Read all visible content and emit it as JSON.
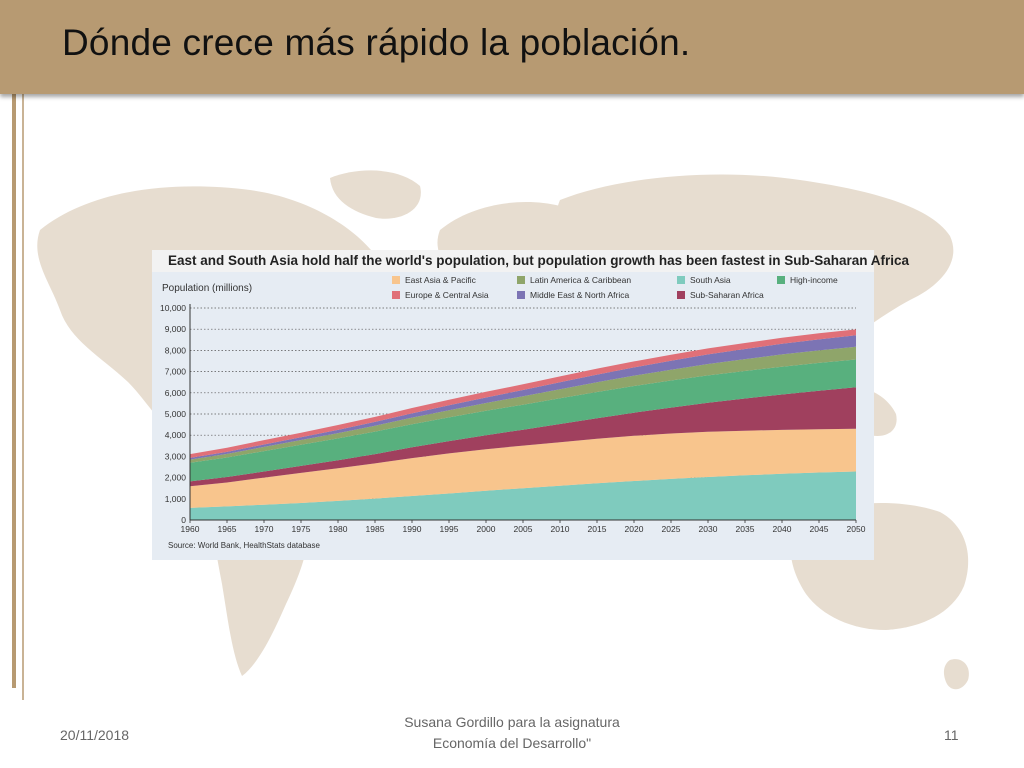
{
  "slide": {
    "title": "Dónde crece más rápido la población.",
    "date": "20/11/2018",
    "footer_line1": "Susana Gordillo para la asignatura",
    "footer_line2": "Economía del Desarrollo\"",
    "page_number": "11"
  },
  "colors": {
    "title_bar": "#b79a72",
    "map": "#e7ddd0"
  },
  "chart_data": {
    "type": "area",
    "stacked": true,
    "title": "East and South Asia hold half the world's population, but population growth has been fastest in Sub-Saharan Africa",
    "ylabel": "Population (millions)",
    "xlabel": "",
    "source": "Source: World Bank, HealthStats database",
    "x": [
      1960,
      1965,
      1970,
      1975,
      1980,
      1985,
      1990,
      1995,
      2000,
      2005,
      2010,
      2015,
      2020,
      2025,
      2030,
      2035,
      2040,
      2045,
      2050
    ],
    "x_tick_labels": [
      "1960",
      "1965",
      "1970",
      "1975",
      "1980",
      "1985",
      "1990",
      "1995",
      "2000",
      "2005",
      "2010",
      "2015",
      "2020",
      "2025",
      "2030",
      "2035",
      "2040",
      "2045",
      "2050"
    ],
    "ylim": [
      0,
      10000
    ],
    "y_ticks": [
      0,
      1000,
      2000,
      3000,
      4000,
      5000,
      6000,
      7000,
      8000,
      9000,
      10000
    ],
    "y_tick_labels": [
      "0",
      "1,000",
      "2,000",
      "3,000",
      "4,000",
      "5,000",
      "6,000",
      "7,000",
      "8,000",
      "9,000",
      "10,000"
    ],
    "grid": "horizontal dotted",
    "legend_position": "top",
    "legend_order": [
      "East Asia & Pacific",
      "Latin America & Caribbean",
      "South Asia",
      "High-income",
      "Europe & Central Asia",
      "Middle East & North Africa",
      "Sub-Saharan Africa"
    ],
    "series": [
      {
        "name": "South Asia",
        "color": "#7fcbbe",
        "values": [
          570,
          640,
          720,
          800,
          900,
          1010,
          1130,
          1250,
          1380,
          1500,
          1620,
          1730,
          1840,
          1940,
          2030,
          2110,
          2180,
          2240,
          2290
        ]
      },
      {
        "name": "East Asia & Pacific",
        "color": "#f8c58d",
        "values": [
          1020,
          1130,
          1280,
          1420,
          1540,
          1660,
          1790,
          1890,
          1960,
          2010,
          2050,
          2100,
          2130,
          2140,
          2130,
          2100,
          2070,
          2040,
          2010
        ]
      },
      {
        "name": "Sub-Saharan Africa",
        "color": "#a0405e",
        "values": [
          230,
          260,
          290,
          330,
          380,
          440,
          510,
          580,
          660,
          750,
          860,
          970,
          1090,
          1220,
          1370,
          1520,
          1670,
          1820,
          1960
        ]
      },
      {
        "name": "High-income",
        "color": "#58b07e",
        "values": [
          880,
          920,
          960,
          1000,
          1030,
          1060,
          1090,
          1120,
          1150,
          1180,
          1210,
          1240,
          1260,
          1280,
          1290,
          1300,
          1310,
          1310,
          1310
        ]
      },
      {
        "name": "Latin America & Caribbean",
        "color": "#8fa56a",
        "values": [
          150,
          170,
          200,
          225,
          250,
          280,
          310,
          340,
          370,
          400,
          430,
          460,
          490,
          510,
          540,
          560,
          580,
          590,
          600
        ]
      },
      {
        "name": "Middle East & North Africa",
        "color": "#7c74b4",
        "values": [
          80,
          90,
          110,
          125,
          150,
          175,
          200,
          230,
          260,
          290,
          330,
          360,
          390,
          420,
          450,
          475,
          500,
          520,
          540
        ]
      },
      {
        "name": "Europe & Central Asia",
        "color": "#e07078",
        "values": [
          180,
          195,
          210,
          220,
          230,
          240,
          255,
          260,
          265,
          270,
          275,
          280,
          280,
          285,
          285,
          285,
          285,
          285,
          280
        ]
      }
    ]
  }
}
